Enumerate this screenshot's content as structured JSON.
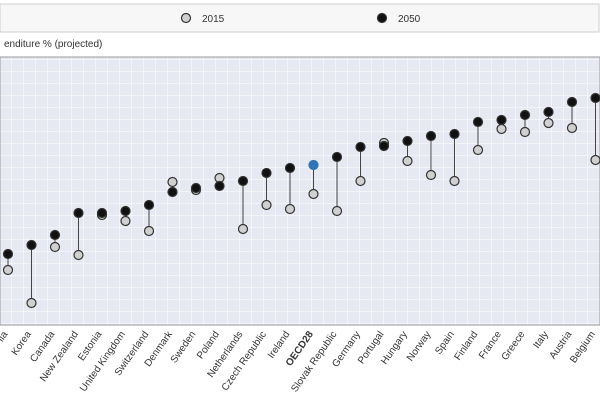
{
  "chart_data": {
    "type": "dot",
    "y_label": "enditure % (projected)",
    "categories": [
      "lia",
      "Korea",
      "Canada",
      "New Zealand",
      "Estonia",
      "United Kingdom",
      "Switzerland",
      "Denmark",
      "Sweden",
      "Poland",
      "Netherlands",
      "Czech Republic",
      "Ireland",
      "OECD28",
      "Slovak Republic",
      "Germany",
      "Portugal",
      "Hungary",
      "Norway",
      "Spain",
      "Finland",
      "France",
      "Greece",
      "Italy",
      "Austria",
      "Belgium"
    ],
    "series": [
      {
        "name": "2015",
        "color": "#d0d0d0",
        "values": [
          2.5,
          0.85,
          3.65,
          3.25,
          5.25,
          4.95,
          4.45,
          6.9,
          6.5,
          7.1,
          4.55,
          5.75,
          5.55,
          6.3,
          5.45,
          6.95,
          8.85,
          7.95,
          7.25,
          6.95,
          8.5,
          9.55,
          9.4,
          9.85,
          9.6,
          8.0
        ]
      },
      {
        "name": "2050",
        "color": "#111111",
        "values": [
          3.3,
          3.75,
          4.25,
          5.35,
          5.35,
          5.45,
          5.75,
          6.4,
          6.6,
          6.7,
          6.95,
          7.35,
          7.6,
          7.75,
          8.15,
          8.65,
          8.7,
          8.95,
          9.2,
          9.3,
          9.9,
          10.0,
          10.25,
          10.4,
          10.9,
          11.1
        ]
      }
    ],
    "highlight": {
      "category": "OECD28",
      "color": "#2f75b5"
    },
    "ylim": [
      0,
      13
    ],
    "legend": "top"
  }
}
